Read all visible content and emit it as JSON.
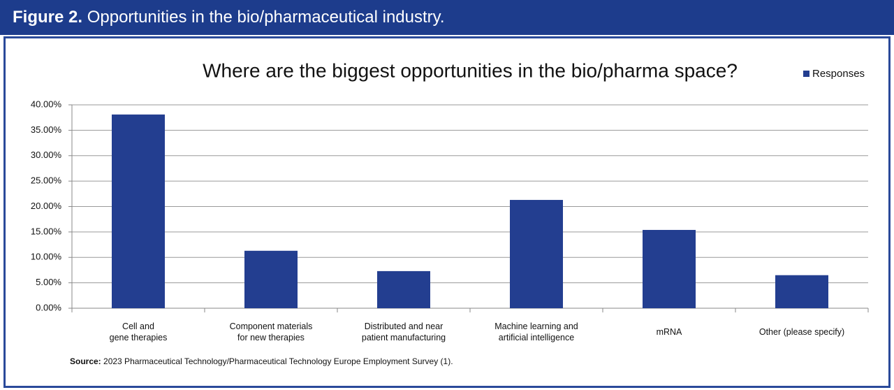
{
  "figure": {
    "label": "Figure 2.",
    "caption": "Opportunities in the bio/pharmaceutical industry."
  },
  "source": {
    "label": "Source:",
    "text": "2023 Pharmaceutical Technology/Pharmaceutical Technology Europe Employment Survey (1)."
  },
  "chart_data": {
    "type": "bar",
    "title": "Where are the biggest opportunities in the bio/pharma space?",
    "categories": [
      "Cell and\ngene therapies",
      "Component materials\nfor new therapies",
      "Distributed and near\npatient manufacturing",
      "Machine learning and\nartificial intelligence",
      "mRNA",
      "Other (please specify)"
    ],
    "series": [
      {
        "name": "Responses",
        "color": "#233e90",
        "values": [
          38.1,
          11.3,
          7.3,
          21.3,
          15.4,
          6.5
        ]
      }
    ],
    "ylim": [
      0,
      40
    ],
    "yticks": [
      {
        "value": 0,
        "label": "0.00%"
      },
      {
        "value": 5,
        "label": "5.00%"
      },
      {
        "value": 10,
        "label": "10.00%"
      },
      {
        "value": 15,
        "label": "15.00%"
      },
      {
        "value": 20,
        "label": "20.00%"
      },
      {
        "value": 25,
        "label": "25.00%"
      },
      {
        "value": 30,
        "label": "30.00%"
      },
      {
        "value": 35,
        "label": "35.00%"
      },
      {
        "value": 40,
        "label": "40.00%"
      }
    ],
    "grid": true,
    "legend": "top-right"
  }
}
